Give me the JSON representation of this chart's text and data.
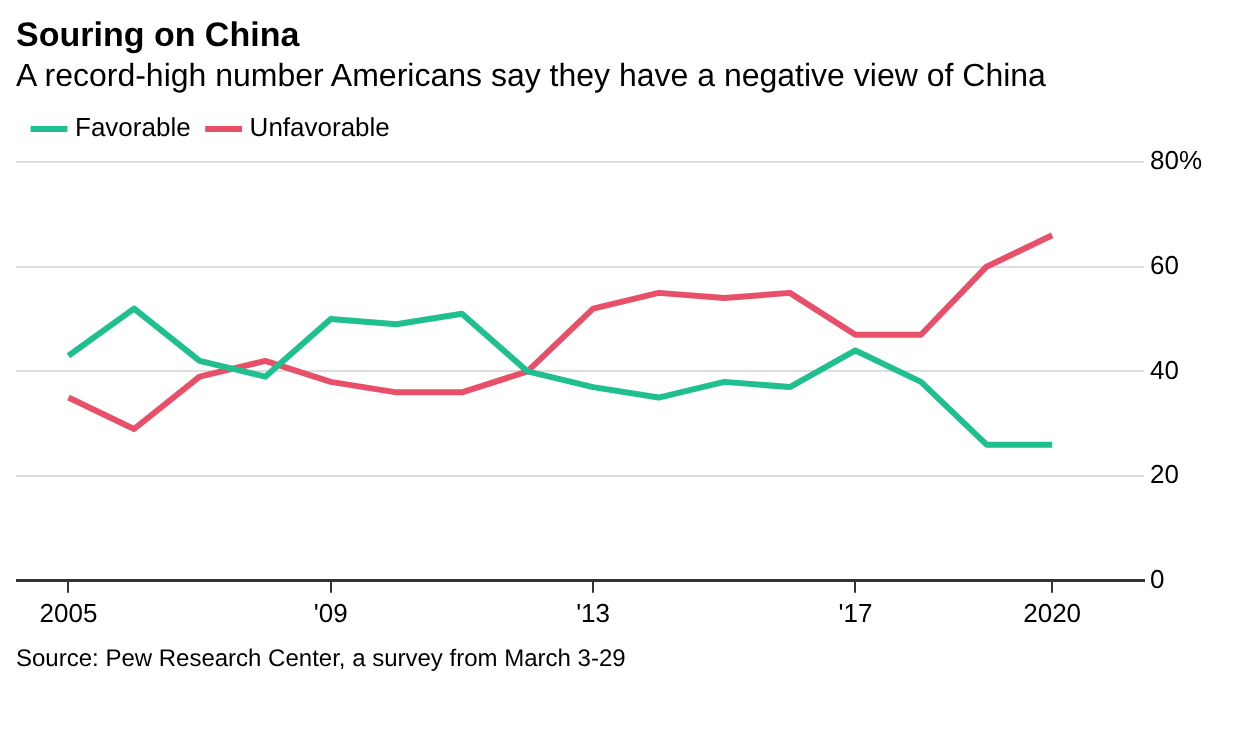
{
  "chart_data": {
    "type": "line",
    "title": "Souring on China",
    "subtitle": "A record-high number Americans say they have a negative view of China",
    "x": [
      2005,
      2006,
      2007,
      2008,
      2009,
      2010,
      2011,
      2012,
      2013,
      2014,
      2015,
      2016,
      2017,
      2018,
      2019,
      2020
    ],
    "series": [
      {
        "name": "Favorable",
        "color": "#1fbf8f",
        "values": [
          43,
          52,
          42,
          39,
          50,
          49,
          51,
          40,
          37,
          35,
          38,
          37,
          44,
          38,
          26,
          26
        ]
      },
      {
        "name": "Unfavorable",
        "color": "#e8506a",
        "values": [
          35,
          29,
          39,
          42,
          38,
          36,
          36,
          40,
          52,
          55,
          54,
          55,
          47,
          47,
          60,
          66
        ]
      }
    ],
    "xlim": [
      2004.2,
      2021.4
    ],
    "xticks": [
      {
        "value": 2005,
        "label": "2005"
      },
      {
        "value": 2009,
        "label": "'09"
      },
      {
        "value": 2013,
        "label": "'13"
      },
      {
        "value": 2017,
        "label": "'17"
      },
      {
        "value": 2020,
        "label": "2020"
      }
    ],
    "ylim": [
      0,
      80
    ],
    "yticks": [
      0,
      20,
      40,
      60,
      {
        "value": 80,
        "label": "80%"
      }
    ],
    "grid": "y",
    "legend": "top left",
    "marker": "none",
    "line_style": "solid",
    "annotations": [
      "Source: Pew Research Center, a survey from March 3-29"
    ]
  }
}
